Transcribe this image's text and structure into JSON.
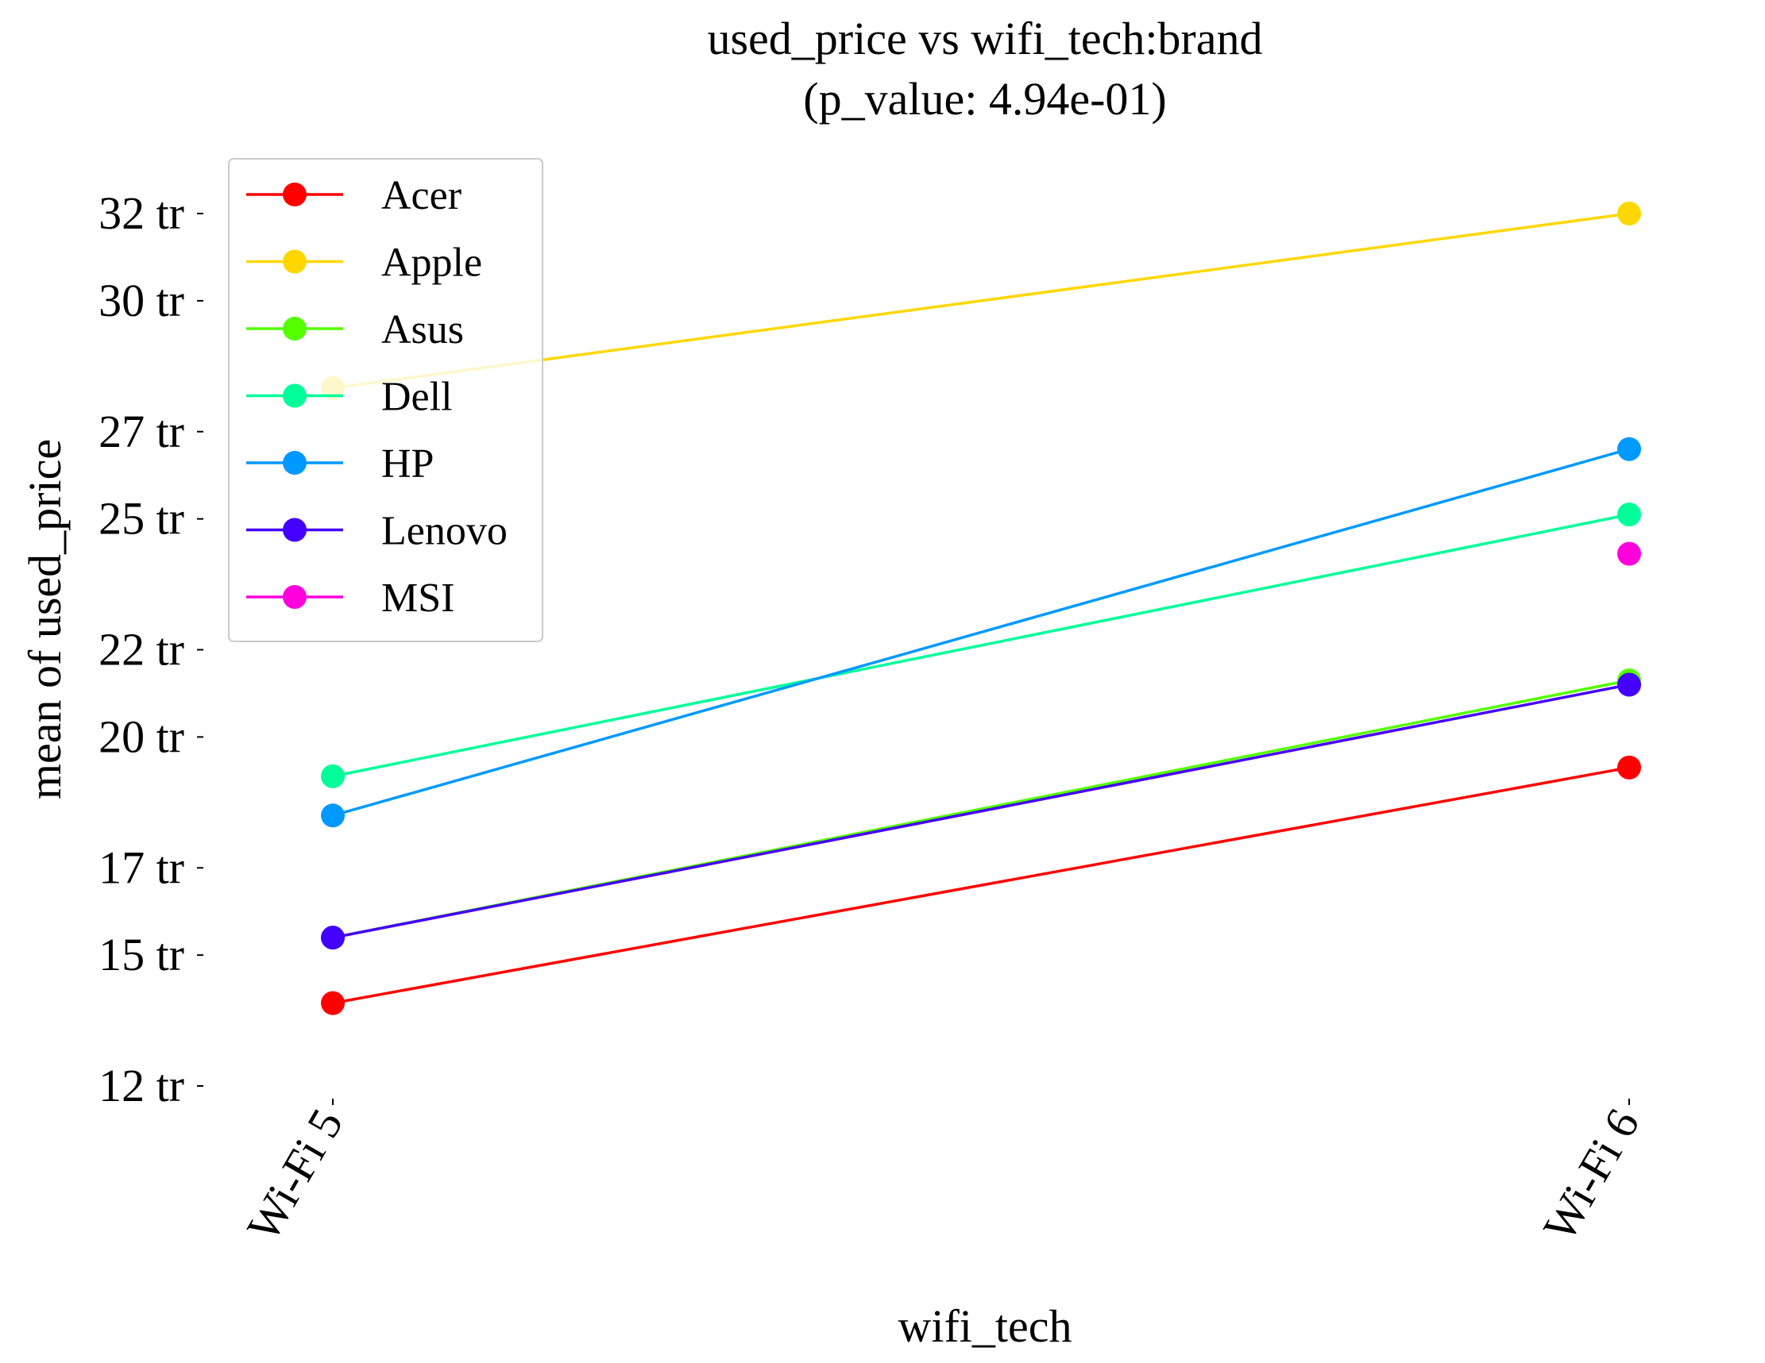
{
  "chart_data": {
    "type": "line",
    "title": "used_price vs wifi_tech:brand",
    "subtitle": "(p_value: 4.94e-01)",
    "xlabel": "wifi_tech",
    "ylabel": "mean of used_price",
    "categories": [
      "Wi-Fi 5",
      "Wi-Fi 6"
    ],
    "ylim": [
      12,
      32
    ],
    "yticks": [
      12,
      15,
      17,
      20,
      22,
      25,
      27,
      30,
      32
    ],
    "ytick_labels": [
      "12 tr",
      "15 tr",
      "17 tr",
      "20 tr",
      "22 tr",
      "25 tr",
      "27 tr",
      "30 tr",
      "32 tr"
    ],
    "grid": false,
    "legend_position": "top-left",
    "series": [
      {
        "name": "Acer",
        "color": "#ff0000",
        "values": [
          13.9,
          19.3
        ]
      },
      {
        "name": "Apple",
        "color": "#ffd700",
        "values": [
          28.0,
          32.0
        ]
      },
      {
        "name": "Asus",
        "color": "#55ff00",
        "values": [
          15.4,
          21.3
        ]
      },
      {
        "name": "Dell",
        "color": "#00ff99",
        "values": [
          19.1,
          25.1
        ]
      },
      {
        "name": "HP",
        "color": "#0099ff",
        "values": [
          18.2,
          26.6
        ]
      },
      {
        "name": "Lenovo",
        "color": "#4400ff",
        "values": [
          15.4,
          21.2
        ]
      },
      {
        "name": "MSI",
        "color": "#ff00dd",
        "values": [
          null,
          24.2
        ]
      }
    ]
  }
}
